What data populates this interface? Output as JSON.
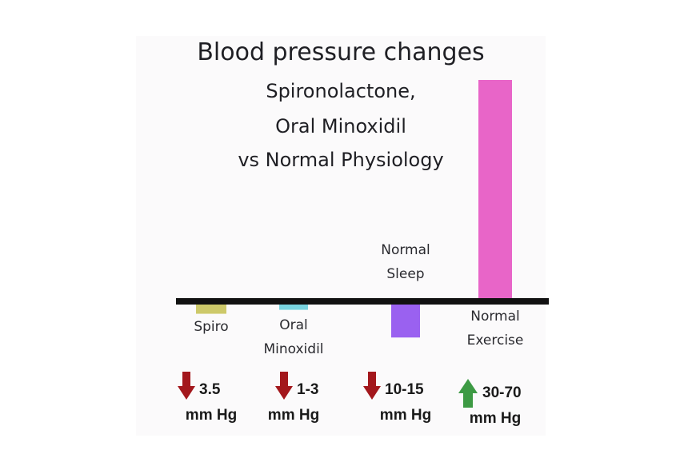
{
  "title": "Blood pressure changes",
  "subtitle_lines": [
    "Spironolactone,",
    "Oral Minoxidil",
    "vs Normal Physiology"
  ],
  "chart_data": {
    "type": "bar",
    "title": "Blood pressure changes",
    "subtitle": "Spironolactone, Oral Minoxidil vs Normal Physiology",
    "categories": [
      {
        "label_lines": [
          "Spiro"
        ],
        "change": "3.5",
        "unit": "mm Hg",
        "direction": "down",
        "value": -3.5,
        "color": "#cdc96a"
      },
      {
        "label_lines": [
          "Oral",
          "Minoxidil"
        ],
        "change": "1-3",
        "unit": "mm Hg",
        "direction": "down",
        "value": -2,
        "color": "#79d4e0"
      },
      {
        "label_lines": [
          "Normal",
          "Sleep"
        ],
        "change": "10-15",
        "unit": "mm Hg",
        "direction": "down",
        "value": -12.5,
        "color": "#9a61f0"
      },
      {
        "label_lines": [
          "Normal",
          "Exercise"
        ],
        "change": "30-70",
        "unit": "mm Hg",
        "direction": "up",
        "value": 70,
        "color": "#e865c8"
      }
    ],
    "colors": {
      "down_arrow": "#a3171c",
      "up_arrow": "#3d9a44",
      "baseline": "#111111"
    },
    "xlabel": "",
    "ylabel": "",
    "grid": false,
    "legend": "none"
  }
}
